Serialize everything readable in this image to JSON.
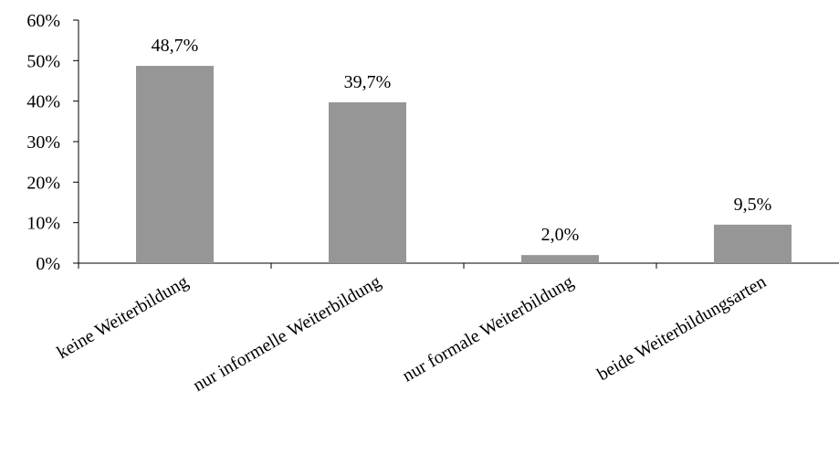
{
  "chart_data": {
    "type": "bar",
    "title": "",
    "xlabel": "",
    "ylabel": "",
    "categories": [
      "keine Weiterbildung",
      "nur informelle Weiterbildung",
      "nur formale Weiterbildung",
      "beide Weiterbildungsarten"
    ],
    "values": [
      48.7,
      39.7,
      2.0,
      9.5
    ],
    "data_labels": [
      "48,7%",
      "39,7%",
      "2,0%",
      "9,5%"
    ],
    "ylim": [
      0,
      60
    ],
    "y_ticks": [
      0,
      10,
      20,
      30,
      40,
      50,
      60
    ],
    "y_tick_labels": [
      "0%",
      "10%",
      "20%",
      "30%",
      "40%",
      "50%",
      "60%"
    ],
    "grid": false,
    "legend": "none",
    "bar_color": "#969696"
  }
}
